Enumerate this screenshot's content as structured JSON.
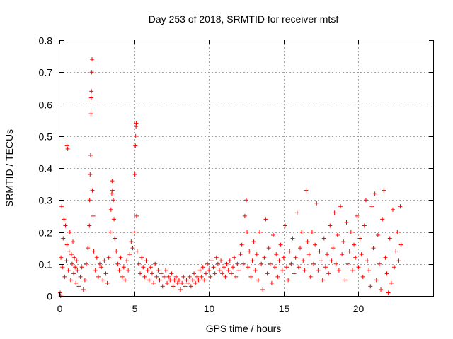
{
  "chart_data": {
    "type": "scatter",
    "title": "Day 253 of 2018, SRMTID for receiver mtsf",
    "xlabel": "GPS time / hours",
    "ylabel": "SRMTID / TECUs",
    "xlim": [
      0,
      25
    ],
    "ylim": [
      0,
      0.8
    ],
    "xticks": [
      0,
      5,
      10,
      15,
      20
    ],
    "yticks": [
      0,
      0.1,
      0.2,
      0.3,
      0.4,
      0.5,
      0.6,
      0.7,
      0.8
    ],
    "xtick_labels": [
      "0",
      "5",
      "10",
      "15",
      "20"
    ],
    "ytick_labels": [
      "0",
      "0.1",
      "0.2",
      "0.3",
      "0.4",
      "0.5",
      "0.6",
      "0.7",
      "0.8"
    ],
    "grid": true,
    "marker": "+",
    "color": "#ff0000",
    "series": [
      {
        "name": "SRMTID",
        "points": [
          [
            0.05,
            0.01
          ],
          [
            0.08,
            0.0
          ],
          [
            0.1,
            0.12
          ],
          [
            0.15,
            0.28
          ],
          [
            0.2,
            0.09
          ],
          [
            0.25,
            0.18
          ],
          [
            0.3,
            0.24
          ],
          [
            0.35,
            0.06
          ],
          [
            0.4,
            0.22
          ],
          [
            0.45,
            0.11
          ],
          [
            0.5,
            0.16
          ],
          [
            0.5,
            0.47
          ],
          [
            0.55,
            0.46
          ],
          [
            0.6,
            0.08
          ],
          [
            0.65,
            0.14
          ],
          [
            0.7,
            0.2
          ],
          [
            0.75,
            0.05
          ],
          [
            0.8,
            0.13
          ],
          [
            0.85,
            0.1
          ],
          [
            0.9,
            0.17
          ],
          [
            0.95,
            0.07
          ],
          [
            1.0,
            0.12
          ],
          [
            1.05,
            0.09
          ],
          [
            1.1,
            0.04
          ],
          [
            1.15,
            0.11
          ],
          [
            1.2,
            0.08
          ],
          [
            1.3,
            0.03
          ],
          [
            1.4,
            0.06
          ],
          [
            1.5,
            0.09
          ],
          [
            1.6,
            0.02
          ],
          [
            1.7,
            0.05
          ],
          [
            1.8,
            0.1
          ],
          [
            1.9,
            0.15
          ],
          [
            2.0,
            0.22
          ],
          [
            2.02,
            0.3
          ],
          [
            2.05,
            0.38
          ],
          [
            2.08,
            0.44
          ],
          [
            2.1,
            0.57
          ],
          [
            2.12,
            0.62
          ],
          [
            2.14,
            0.64
          ],
          [
            2.16,
            0.7
          ],
          [
            2.18,
            0.74
          ],
          [
            2.2,
            0.33
          ],
          [
            2.25,
            0.25
          ],
          [
            2.3,
            0.14
          ],
          [
            2.4,
            0.08
          ],
          [
            2.5,
            0.12
          ],
          [
            2.6,
            0.06
          ],
          [
            2.7,
            0.1
          ],
          [
            2.8,
            0.09
          ],
          [
            2.9,
            0.05
          ],
          [
            3.0,
            0.11
          ],
          [
            3.1,
            0.07
          ],
          [
            3.2,
            0.04
          ],
          [
            3.3,
            0.12
          ],
          [
            3.4,
            0.2
          ],
          [
            3.45,
            0.27
          ],
          [
            3.5,
            0.32
          ],
          [
            3.52,
            0.36
          ],
          [
            3.55,
            0.33
          ],
          [
            3.6,
            0.3
          ],
          [
            3.65,
            0.24
          ],
          [
            3.7,
            0.18
          ],
          [
            3.8,
            0.14
          ],
          [
            3.9,
            0.1
          ],
          [
            4.0,
            0.08
          ],
          [
            4.1,
            0.12
          ],
          [
            4.2,
            0.06
          ],
          [
            4.3,
            0.09
          ],
          [
            4.4,
            0.05
          ],
          [
            4.5,
            0.11
          ],
          [
            4.6,
            0.08
          ],
          [
            4.7,
            0.13
          ],
          [
            4.8,
            0.17
          ],
          [
            4.9,
            0.15
          ],
          [
            5.0,
            0.2
          ],
          [
            5.05,
            0.38
          ],
          [
            5.08,
            0.47
          ],
          [
            5.1,
            0.5
          ],
          [
            5.12,
            0.53
          ],
          [
            5.14,
            0.54
          ],
          [
            5.16,
            0.25
          ],
          [
            5.2,
            0.14
          ],
          [
            5.3,
            0.1
          ],
          [
            5.4,
            0.07
          ],
          [
            5.5,
            0.12
          ],
          [
            5.6,
            0.09
          ],
          [
            5.7,
            0.06
          ],
          [
            5.8,
            0.11
          ],
          [
            5.9,
            0.08
          ],
          [
            6.0,
            0.05
          ],
          [
            6.1,
            0.09
          ],
          [
            6.2,
            0.07
          ],
          [
            6.3,
            0.04
          ],
          [
            6.4,
            0.1
          ],
          [
            6.5,
            0.06
          ],
          [
            6.6,
            0.08
          ],
          [
            6.7,
            0.05
          ],
          [
            6.8,
            0.07
          ],
          [
            6.9,
            0.03
          ],
          [
            7.0,
            0.06
          ],
          [
            7.1,
            0.08
          ],
          [
            7.2,
            0.04
          ],
          [
            7.3,
            0.06
          ],
          [
            7.4,
            0.05
          ],
          [
            7.5,
            0.07
          ],
          [
            7.6,
            0.03
          ],
          [
            7.7,
            0.05
          ],
          [
            7.8,
            0.06
          ],
          [
            7.9,
            0.04
          ],
          [
            8.0,
            0.05
          ],
          [
            8.1,
            0.02
          ],
          [
            8.2,
            0.04
          ],
          [
            8.3,
            0.06
          ],
          [
            8.4,
            0.03
          ],
          [
            8.5,
            0.05
          ],
          [
            8.6,
            0.04
          ],
          [
            8.7,
            0.06
          ],
          [
            8.8,
            0.03
          ],
          [
            8.9,
            0.05
          ],
          [
            9.0,
            0.07
          ],
          [
            9.1,
            0.04
          ],
          [
            9.2,
            0.06
          ],
          [
            9.3,
            0.05
          ],
          [
            9.4,
            0.08
          ],
          [
            9.5,
            0.06
          ],
          [
            9.6,
            0.09
          ],
          [
            9.7,
            0.05
          ],
          [
            9.8,
            0.07
          ],
          [
            9.9,
            0.1
          ],
          [
            10.0,
            0.08
          ],
          [
            10.1,
            0.06
          ],
          [
            10.2,
            0.11
          ],
          [
            10.3,
            0.09
          ],
          [
            10.4,
            0.07
          ],
          [
            10.5,
            0.12
          ],
          [
            10.6,
            0.1
          ],
          [
            10.7,
            0.08
          ],
          [
            10.8,
            0.11
          ],
          [
            10.9,
            0.07
          ],
          [
            11.0,
            0.09
          ],
          [
            11.1,
            0.06
          ],
          [
            11.2,
            0.1
          ],
          [
            11.3,
            0.08
          ],
          [
            11.4,
            0.11
          ],
          [
            11.5,
            0.07
          ],
          [
            11.6,
            0.09
          ],
          [
            11.7,
            0.12
          ],
          [
            11.8,
            0.06
          ],
          [
            11.9,
            0.1
          ],
          [
            12.0,
            0.08
          ],
          [
            12.1,
            0.13
          ],
          [
            12.2,
            0.16
          ],
          [
            12.3,
            0.1
          ],
          [
            12.4,
            0.25
          ],
          [
            12.5,
            0.3
          ],
          [
            12.55,
            0.2
          ],
          [
            12.6,
            0.09
          ],
          [
            12.7,
            0.14
          ],
          [
            12.8,
            0.06
          ],
          [
            12.9,
            0.11
          ],
          [
            13.0,
            0.17
          ],
          [
            13.1,
            0.08
          ],
          [
            13.2,
            0.13
          ],
          [
            13.3,
            0.05
          ],
          [
            13.4,
            0.2
          ],
          [
            13.5,
            0.1
          ],
          [
            13.6,
            0.02
          ],
          [
            13.7,
            0.12
          ],
          [
            13.8,
            0.24
          ],
          [
            13.9,
            0.07
          ],
          [
            14.0,
            0.15
          ],
          [
            14.1,
            0.1
          ],
          [
            14.2,
            0.04
          ],
          [
            14.3,
            0.19
          ],
          [
            14.4,
            0.09
          ],
          [
            14.5,
            0.13
          ],
          [
            14.6,
            0.06
          ],
          [
            14.7,
            0.11
          ],
          [
            14.8,
            0.16
          ],
          [
            14.9,
            0.08
          ],
          [
            15.0,
            0.12
          ],
          [
            15.1,
            0.22
          ],
          [
            15.2,
            0.09
          ],
          [
            15.3,
            0.05
          ],
          [
            15.4,
            0.14
          ],
          [
            15.5,
            0.1
          ],
          [
            15.6,
            0.18
          ],
          [
            15.7,
            0.07
          ],
          [
            15.8,
            0.12
          ],
          [
            15.9,
            0.26
          ],
          [
            16.0,
            0.09
          ],
          [
            16.1,
            0.15
          ],
          [
            16.2,
            0.2
          ],
          [
            16.3,
            0.11
          ],
          [
            16.4,
            0.08
          ],
          [
            16.5,
            0.33
          ],
          [
            16.6,
            0.17
          ],
          [
            16.7,
            0.13
          ],
          [
            16.8,
            0.06
          ],
          [
            16.9,
            0.2
          ],
          [
            17.0,
            0.1
          ],
          [
            17.1,
            0.16
          ],
          [
            17.2,
            0.29
          ],
          [
            17.3,
            0.08
          ],
          [
            17.4,
            0.14
          ],
          [
            17.5,
            0.11
          ],
          [
            17.6,
            0.05
          ],
          [
            17.7,
            0.18
          ],
          [
            17.8,
            0.09
          ],
          [
            17.9,
            0.13
          ],
          [
            18.0,
            0.07
          ],
          [
            18.1,
            0.22
          ],
          [
            18.2,
            0.11
          ],
          [
            18.3,
            0.15
          ],
          [
            18.4,
            0.26
          ],
          [
            18.5,
            0.1
          ],
          [
            18.6,
            0.19
          ],
          [
            18.7,
            0.08
          ],
          [
            18.8,
            0.28
          ],
          [
            18.9,
            0.13
          ],
          [
            19.0,
            0.17
          ],
          [
            19.1,
            0.05
          ],
          [
            19.2,
            0.23
          ],
          [
            19.3,
            0.1
          ],
          [
            19.4,
            0.14
          ],
          [
            19.5,
            0.2
          ],
          [
            19.6,
            0.08
          ],
          [
            19.7,
            0.16
          ],
          [
            19.8,
            0.12
          ],
          [
            19.9,
            0.25
          ],
          [
            20.0,
            0.09
          ],
          [
            20.1,
            0.18
          ],
          [
            20.2,
            0.13
          ],
          [
            20.3,
            0.06
          ],
          [
            20.4,
            0.22
          ],
          [
            20.5,
            0.3
          ],
          [
            20.6,
            0.11
          ],
          [
            20.7,
            0.08
          ],
          [
            20.8,
            0.03
          ],
          [
            20.9,
            0.28
          ],
          [
            21.0,
            0.15
          ],
          [
            21.1,
            0.32
          ],
          [
            21.2,
            0.05
          ],
          [
            21.3,
            0.19
          ],
          [
            21.4,
            0.1
          ],
          [
            21.5,
            0.02
          ],
          [
            21.6,
            0.24
          ],
          [
            21.7,
            0.33
          ],
          [
            21.8,
            0.12
          ],
          [
            21.9,
            0.07
          ],
          [
            22.0,
            0.01
          ],
          [
            22.1,
            0.18
          ],
          [
            22.2,
            0.04
          ],
          [
            22.3,
            0.27
          ],
          [
            22.4,
            0.09
          ],
          [
            22.5,
            0.14
          ],
          [
            22.6,
            0.2
          ],
          [
            22.7,
            0.11
          ],
          [
            22.8,
            0.28
          ],
          [
            22.85,
            0.16
          ]
        ]
      }
    ]
  }
}
